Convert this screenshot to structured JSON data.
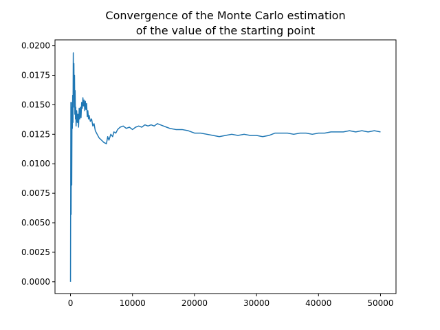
{
  "chart_data": {
    "type": "line",
    "title_lines": [
      "Convergence of the Monte Carlo estimation",
      "of the value of the starting point"
    ],
    "xlabel": "",
    "ylabel": "",
    "xlim": [
      -2500,
      52500
    ],
    "ylim": [
      -0.001,
      0.0205
    ],
    "xticks": [
      0,
      10000,
      20000,
      30000,
      40000,
      50000
    ],
    "xtick_labels": [
      "0",
      "10000",
      "20000",
      "30000",
      "40000",
      "50000"
    ],
    "yticks": [
      0.0,
      0.0025,
      0.005,
      0.0075,
      0.01,
      0.0125,
      0.015,
      0.0175,
      0.02
    ],
    "ytick_labels": [
      "0.0000",
      "0.0025",
      "0.0050",
      "0.0075",
      "0.0100",
      "0.0125",
      "0.0150",
      "0.0175",
      "0.0200"
    ],
    "grid": false,
    "legend": "none",
    "series": [
      {
        "color": "#1f77b4",
        "x": [
          0,
          60,
          100,
          150,
          200,
          250,
          300,
          350,
          400,
          450,
          500,
          550,
          600,
          650,
          700,
          750,
          800,
          850,
          900,
          1000,
          1100,
          1200,
          1300,
          1400,
          1500,
          1600,
          1700,
          1800,
          1900,
          2000,
          2100,
          2200,
          2300,
          2400,
          2500,
          2600,
          2700,
          2800,
          2900,
          3000,
          3200,
          3400,
          3600,
          3800,
          4000,
          4300,
          4600,
          5000,
          5400,
          5800,
          6000,
          6200,
          6500,
          6800,
          7000,
          7300,
          7600,
          8000,
          8500,
          9000,
          9500,
          10000,
          10500,
          11000,
          11500,
          12000,
          12500,
          13000,
          13500,
          14000,
          14500,
          15000,
          15500,
          16000,
          17000,
          18000,
          19000,
          20000,
          21000,
          22000,
          23000,
          24000,
          25000,
          26000,
          27000,
          28000,
          29000,
          30000,
          31000,
          32000,
          33000,
          34000,
          35000,
          36000,
          37000,
          38000,
          39000,
          40000,
          41000,
          42000,
          43000,
          44000,
          45000,
          46000,
          47000,
          48000,
          49000,
          50000
        ],
        "y": [
          0.0,
          0.0152,
          0.0057,
          0.0148,
          0.0082,
          0.0152,
          0.013,
          0.0158,
          0.0135,
          0.0194,
          0.016,
          0.0185,
          0.0148,
          0.0175,
          0.0142,
          0.0162,
          0.0138,
          0.0148,
          0.0132,
          0.0145,
          0.0135,
          0.0142,
          0.0131,
          0.0147,
          0.0138,
          0.0148,
          0.0139,
          0.0152,
          0.0147,
          0.0156,
          0.0149,
          0.0154,
          0.0145,
          0.0153,
          0.0146,
          0.0151,
          0.014,
          0.0145,
          0.0138,
          0.0141,
          0.0136,
          0.0138,
          0.0132,
          0.0134,
          0.0128,
          0.0125,
          0.0122,
          0.012,
          0.0118,
          0.0117,
          0.0123,
          0.012,
          0.0125,
          0.0123,
          0.0127,
          0.0126,
          0.0129,
          0.0131,
          0.0132,
          0.013,
          0.0131,
          0.0129,
          0.0131,
          0.0132,
          0.0131,
          0.0133,
          0.0132,
          0.0133,
          0.0132,
          0.0134,
          0.0133,
          0.0132,
          0.0131,
          0.013,
          0.0129,
          0.0129,
          0.0128,
          0.0126,
          0.0126,
          0.0125,
          0.0124,
          0.0123,
          0.0124,
          0.0125,
          0.0124,
          0.0125,
          0.0124,
          0.0124,
          0.0123,
          0.0124,
          0.0126,
          0.0126,
          0.0126,
          0.0125,
          0.0126,
          0.0126,
          0.0125,
          0.0126,
          0.0126,
          0.0127,
          0.0127,
          0.0127,
          0.0128,
          0.0127,
          0.0128,
          0.0127,
          0.0128,
          0.0127
        ]
      }
    ]
  }
}
